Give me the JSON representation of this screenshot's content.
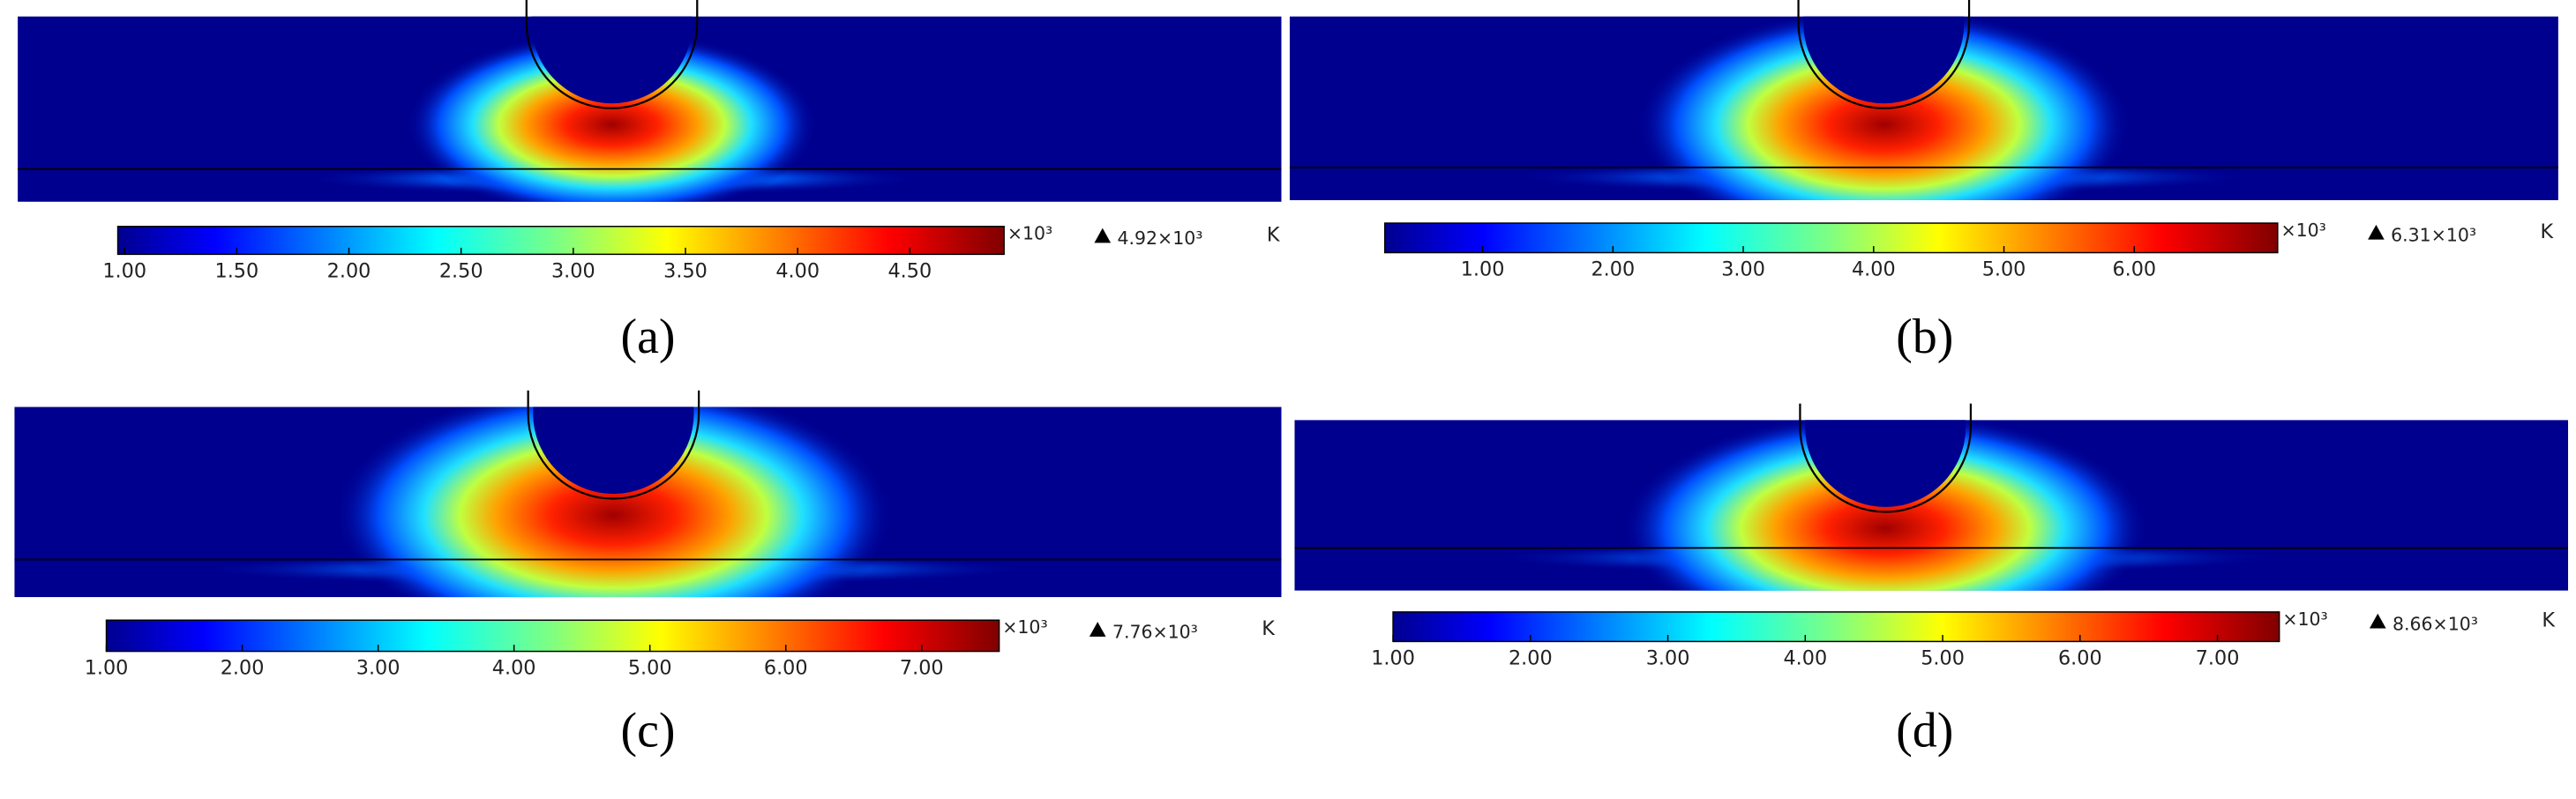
{
  "panels": [
    {
      "label": "(a)",
      "colorbar": {
        "range": [
          0.97,
          4.92
        ],
        "ticks": [
          {
            "value": 1,
            "label": "1.00"
          },
          {
            "value": 1.5,
            "label": "1.50"
          },
          {
            "value": 2,
            "label": "2.00"
          },
          {
            "value": 2.5,
            "label": "2.50"
          },
          {
            "value": 3,
            "label": "3.00"
          },
          {
            "value": 3.5,
            "label": "3.50"
          },
          {
            "value": 4,
            "label": "4.00"
          },
          {
            "value": 4.5,
            "label": "4.50"
          }
        ],
        "multiplier": "×10³",
        "max": "4.92×10³",
        "unit": "K"
      }
    },
    {
      "label": "(b)",
      "colorbar": {
        "range": [
          0.25,
          7.1
        ],
        "ticks": [
          {
            "value": 1,
            "label": "1.00"
          },
          {
            "value": 2,
            "label": "2.00"
          },
          {
            "value": 3,
            "label": "3.00"
          },
          {
            "value": 4,
            "label": "4.00"
          },
          {
            "value": 5,
            "label": "5.00"
          },
          {
            "value": 6,
            "label": "6.00"
          }
        ],
        "multiplier": "×10³",
        "max": "6.31×10³",
        "unit": "K"
      }
    },
    {
      "label": "(c)",
      "colorbar": {
        "range": [
          1.0,
          7.57
        ],
        "ticks": [
          {
            "value": 1,
            "label": "1.00"
          },
          {
            "value": 2,
            "label": "2.00"
          },
          {
            "value": 3,
            "label": "3.00"
          },
          {
            "value": 4,
            "label": "4.00"
          },
          {
            "value": 5,
            "label": "5.00"
          },
          {
            "value": 6,
            "label": "6.00"
          },
          {
            "value": 7,
            "label": "7.00"
          }
        ],
        "multiplier": "×10³",
        "max": "7.76×10³",
        "unit": "K"
      }
    },
    {
      "label": "(d)",
      "colorbar": {
        "range": [
          1.0,
          7.45
        ],
        "ticks": [
          {
            "value": 1,
            "label": "1.00"
          },
          {
            "value": 2,
            "label": "2.00"
          },
          {
            "value": 3,
            "label": "3.00"
          },
          {
            "value": 4,
            "label": "4.00"
          },
          {
            "value": 5,
            "label": "5.00"
          },
          {
            "value": 6,
            "label": "6.00"
          },
          {
            "value": 7,
            "label": "7.00"
          }
        ],
        "multiplier": "×10³",
        "max": "8.66×10³",
        "unit": "K"
      }
    }
  ]
}
